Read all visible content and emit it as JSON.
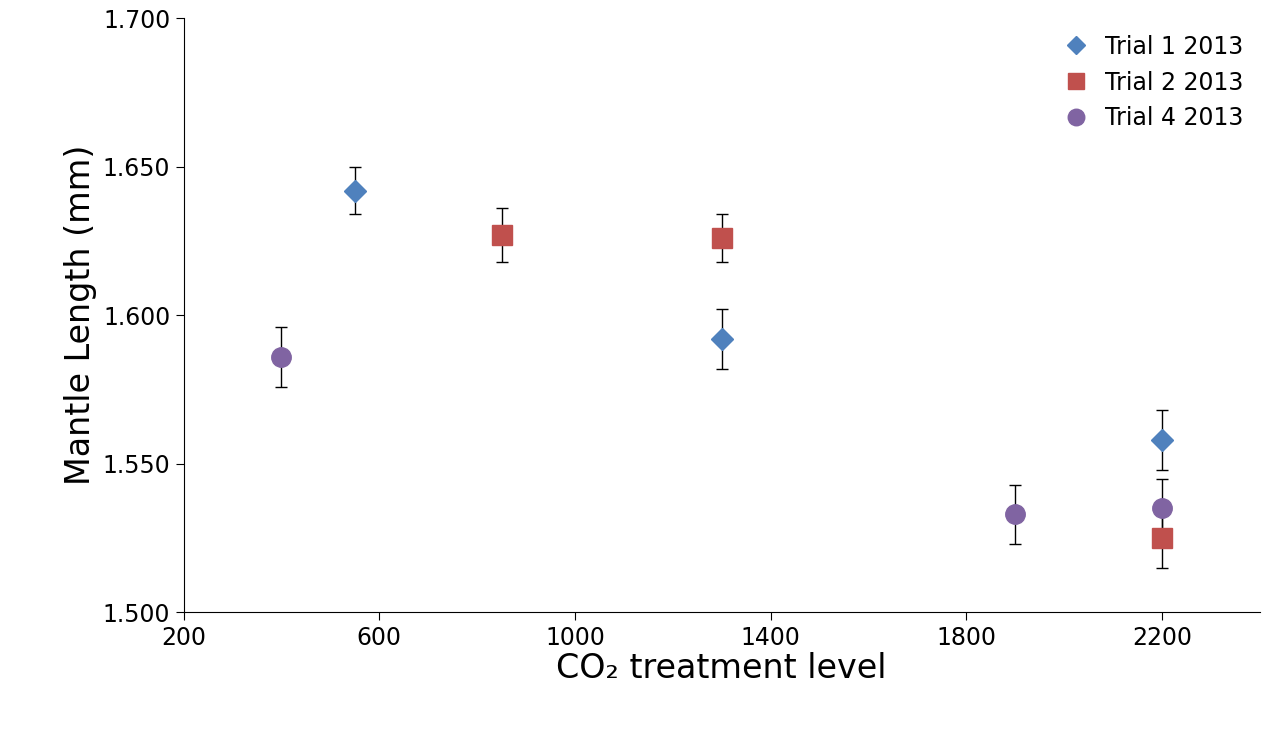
{
  "chart_data": {
    "type": "scatter",
    "x_label": "CO₂ treatment level",
    "y_label": "Mantle Length (mm)",
    "xlim": [
      200,
      2400
    ],
    "xticks": [
      200,
      600,
      1000,
      1400,
      1800,
      2200
    ],
    "ylim": [
      1.5,
      1.7
    ],
    "yticks": [
      {
        "value": 1.5,
        "label": "1.500"
      },
      {
        "value": 1.55,
        "label": "1.550"
      },
      {
        "value": 1.6,
        "label": "1.600"
      },
      {
        "value": 1.65,
        "label": "1.650"
      },
      {
        "value": 1.7,
        "label": "1.700"
      }
    ],
    "legend": "upper right",
    "grid": false,
    "series": [
      {
        "name": "Trial 1 2013",
        "color": "#4f81bd",
        "marker": "diamond",
        "x": [
          550,
          1300,
          2200
        ],
        "values": [
          1.642,
          1.592,
          1.558
        ],
        "errors": [
          0.008,
          0.01,
          0.01
        ]
      },
      {
        "name": "Trial 2 2013",
        "color": "#c0504d",
        "marker": "square",
        "x": [
          850,
          1300,
          2200
        ],
        "values": [
          1.627,
          1.626,
          1.525
        ],
        "errors": [
          0.009,
          0.008,
          0.01
        ]
      },
      {
        "name": "Trial 4 2013",
        "color": "#8064a2",
        "marker": "circle",
        "x": [
          400,
          1900,
          2200
        ],
        "values": [
          1.586,
          1.533,
          1.535
        ],
        "errors": [
          0.01,
          0.01,
          0.01
        ]
      }
    ]
  }
}
